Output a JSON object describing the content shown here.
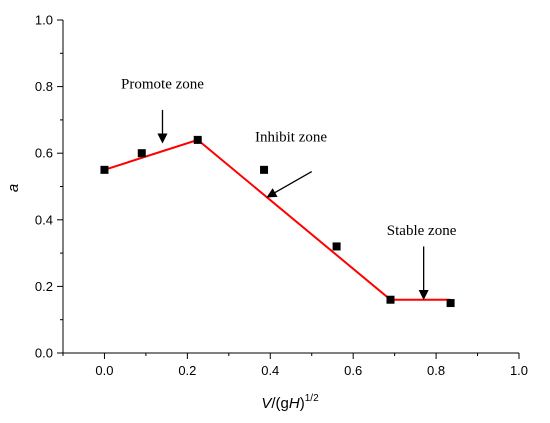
{
  "chart_data": {
    "type": "scatter",
    "title": "",
    "xlabel": "V/(gH)1/2",
    "xlabel_parts": {
      "v": "V",
      "mid": "/(g",
      "h": "H",
      "close": ")",
      "sup": "1/2"
    },
    "ylabel": "a",
    "xlim": [
      -0.1,
      1.0
    ],
    "ylim": [
      0.0,
      1.0
    ],
    "x_ticks": [
      "0.0",
      "0.2",
      "0.4",
      "0.6",
      "0.8",
      "1.0"
    ],
    "y_ticks": [
      "0.0",
      "0.2",
      "0.4",
      "0.6",
      "0.8",
      "1.0"
    ],
    "grid": false,
    "series": [
      {
        "kind": "points",
        "color": "#000000",
        "x": [
          0.0,
          0.09,
          0.225,
          0.385,
          0.56,
          0.69,
          0.835
        ],
        "y": [
          0.55,
          0.6,
          0.64,
          0.55,
          0.32,
          0.16,
          0.15
        ]
      },
      {
        "kind": "line",
        "color": "#ff0000",
        "x": [
          0.0,
          0.225,
          0.69,
          0.835
        ],
        "y": [
          0.55,
          0.64,
          0.16,
          0.16
        ]
      }
    ],
    "annotations": [
      {
        "text": "Promote zone",
        "text_x": 0.14,
        "text_y": 0.795,
        "arrow_from": [
          0.14,
          0.73
        ],
        "arrow_to": [
          0.14,
          0.635
        ]
      },
      {
        "text": "Inhibit zone",
        "text_x": 0.45,
        "text_y": 0.635,
        "arrow_from": [
          0.5,
          0.545
        ],
        "arrow_to": [
          0.395,
          0.47
        ]
      },
      {
        "text": "Stable zone",
        "text_x": 0.765,
        "text_y": 0.355,
        "arrow_from": [
          0.77,
          0.32
        ],
        "arrow_to": [
          0.77,
          0.165
        ]
      }
    ]
  }
}
